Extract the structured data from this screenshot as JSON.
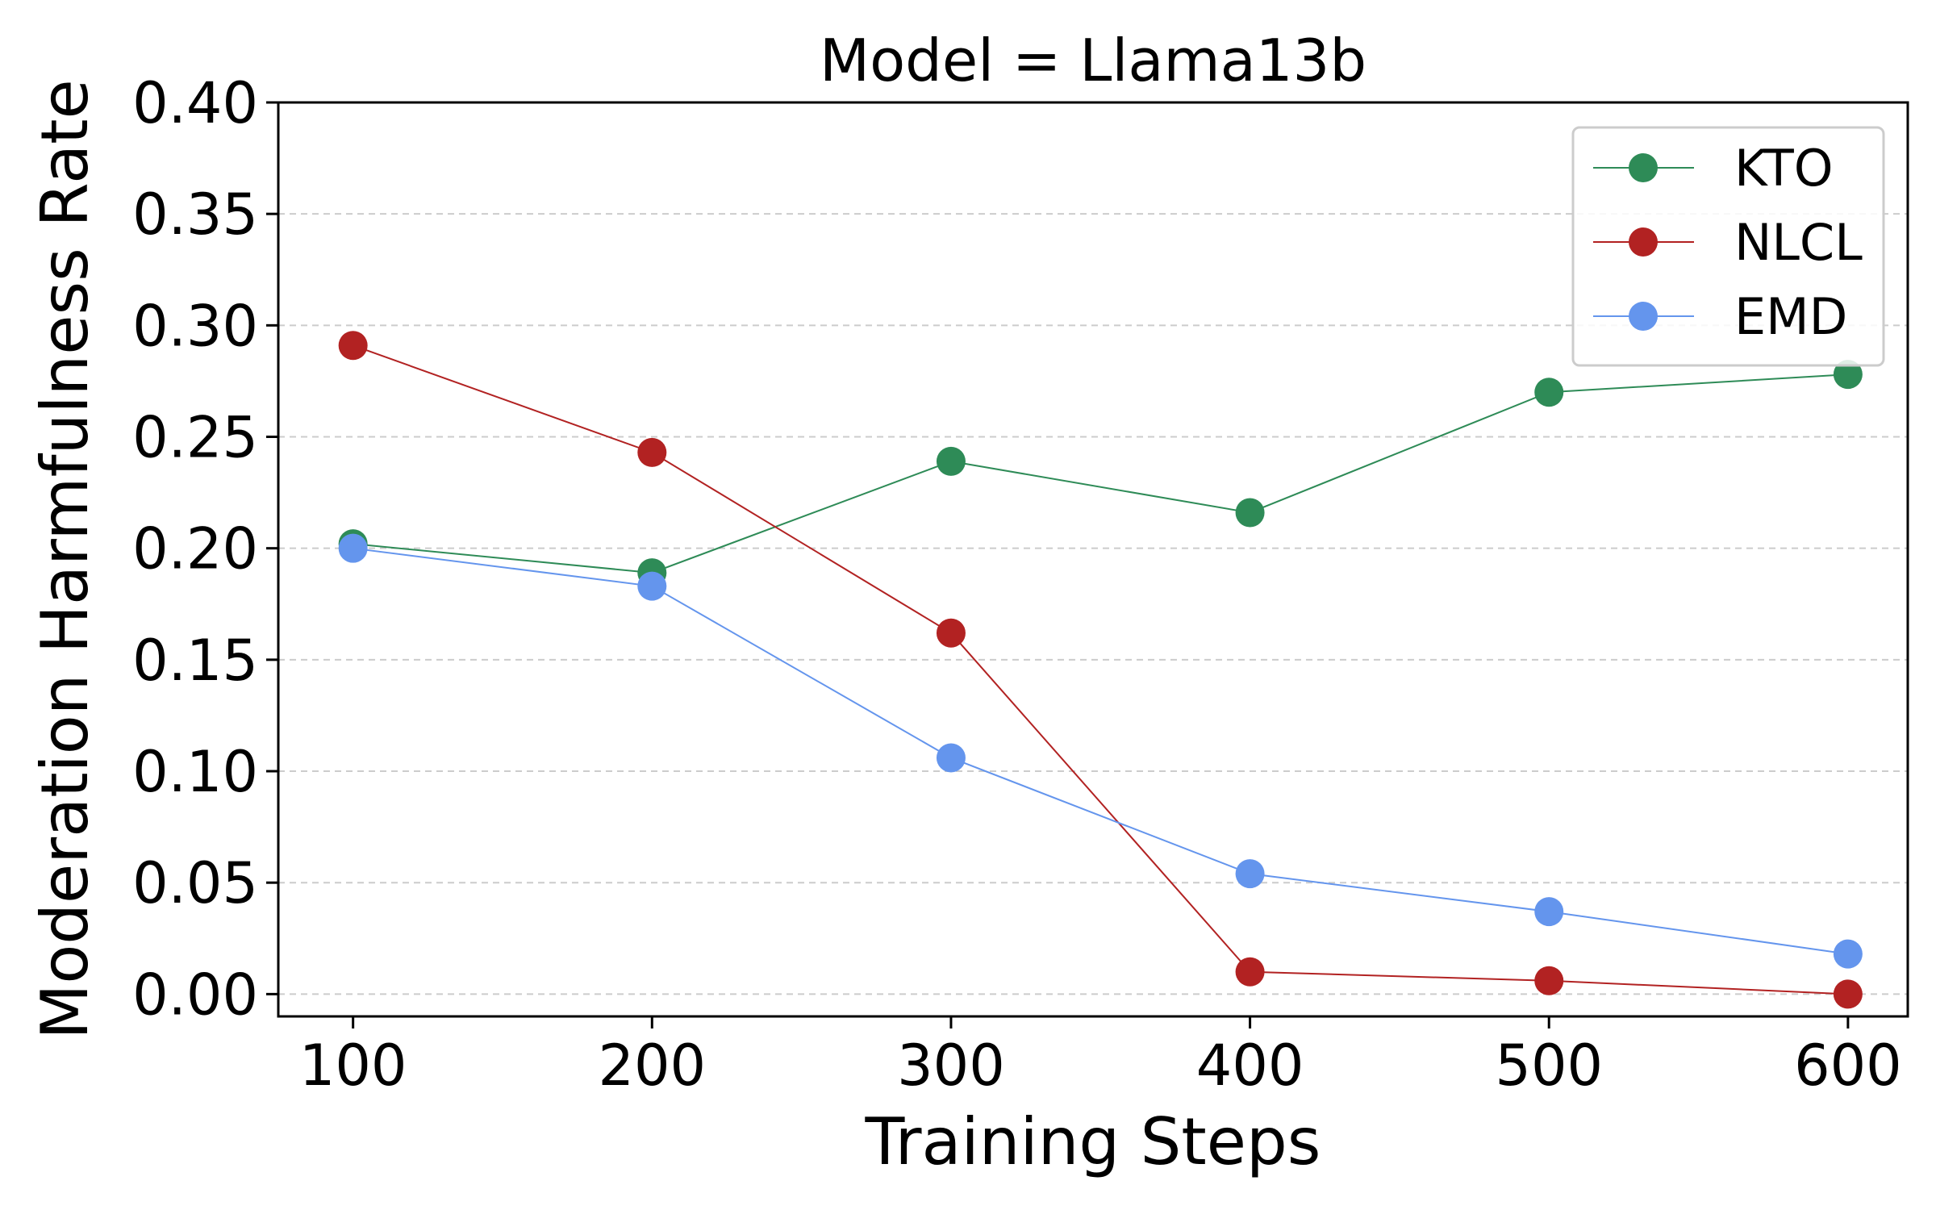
{
  "chart_data": {
    "type": "line",
    "title": "Model = Llama13b",
    "xlabel": "Training Steps",
    "ylabel": "Moderation Harmfulness Rate",
    "x": [
      100,
      200,
      300,
      400,
      500,
      600
    ],
    "x_tick_labels": [
      "100",
      "200",
      "300",
      "400",
      "500",
      "600"
    ],
    "y_tick_values": [
      0.0,
      0.05,
      0.1,
      0.15,
      0.2,
      0.25,
      0.3,
      0.35,
      0.4
    ],
    "y_tick_labels": [
      "0.00",
      "0.05",
      "0.10",
      "0.15",
      "0.20",
      "0.25",
      "0.30",
      "0.35",
      "0.40"
    ],
    "xlim": [
      75,
      620
    ],
    "ylim": [
      -0.01,
      0.4
    ],
    "grid": "horizontal dashed",
    "legend_position": "top-right",
    "series": [
      {
        "name": "KTO",
        "color": "#2e8b57",
        "values": [
          0.202,
          0.189,
          0.239,
          0.216,
          0.27,
          0.278
        ]
      },
      {
        "name": "NLCL",
        "color": "#b22222",
        "values": [
          0.291,
          0.243,
          0.162,
          0.01,
          0.006,
          0.0
        ]
      },
      {
        "name": "EMD",
        "color": "#6495ed",
        "values": [
          0.2,
          0.183,
          0.106,
          0.054,
          0.037,
          0.018
        ]
      }
    ]
  }
}
